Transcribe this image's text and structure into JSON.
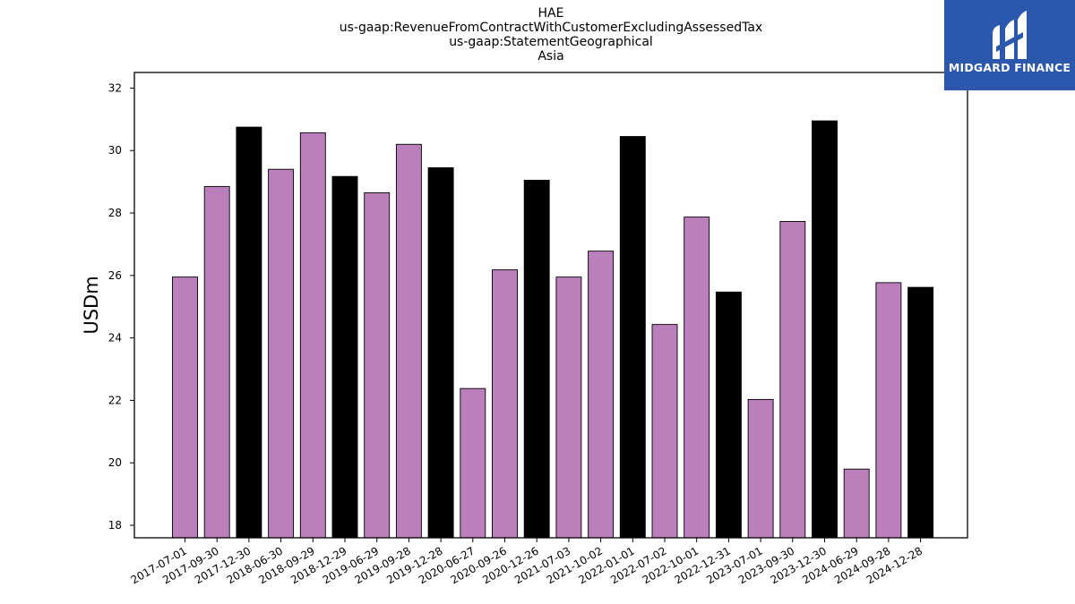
{
  "chart_data": {
    "type": "bar",
    "title_lines": [
      "HAE",
      "us-gaap:RevenueFromContractWithCustomerExcludingAssessedTax",
      "us-gaap:StatementGeographical",
      "Asia"
    ],
    "ylabel": "USDm",
    "xlabel": "",
    "ylim": [
      17.6,
      32.5
    ],
    "yticks": [
      18,
      20,
      22,
      24,
      26,
      28,
      30,
      32
    ],
    "categories": [
      "2017-07-01",
      "2017-09-30",
      "2017-12-30",
      "2018-06-30",
      "2018-09-29",
      "2018-12-29",
      "2019-06-29",
      "2019-09-28",
      "2019-12-28",
      "2020-06-27",
      "2020-09-26",
      "2020-12-26",
      "2021-07-03",
      "2021-10-02",
      "2022-01-01",
      "2022-07-02",
      "2022-10-01",
      "2022-12-31",
      "2023-07-01",
      "2023-09-30",
      "2023-12-30",
      "2024-06-29",
      "2024-09-28",
      "2024-12-28"
    ],
    "values": [
      25.95,
      28.85,
      30.75,
      29.4,
      30.57,
      29.17,
      28.65,
      30.2,
      29.45,
      22.38,
      26.18,
      29.05,
      25.95,
      26.78,
      30.45,
      24.43,
      27.87,
      25.47,
      22.03,
      27.73,
      30.95,
      19.8,
      25.77,
      25.62
    ],
    "bar_colors": [
      "#bb7fbb",
      "#bb7fbb",
      "#000000",
      "#bb7fbb",
      "#bb7fbb",
      "#000000",
      "#bb7fbb",
      "#bb7fbb",
      "#000000",
      "#bb7fbb",
      "#bb7fbb",
      "#000000",
      "#bb7fbb",
      "#bb7fbb",
      "#000000",
      "#bb7fbb",
      "#bb7fbb",
      "#000000",
      "#bb7fbb",
      "#bb7fbb",
      "#000000",
      "#bb7fbb",
      "#bb7fbb",
      "#000000"
    ],
    "colors": {
      "quarter": "#bb7fbb",
      "year_end": "#000000"
    },
    "grid": false,
    "legend": "none"
  },
  "logo": {
    "text": "MIDGARD FINANCE",
    "background": "#2b58ad"
  }
}
